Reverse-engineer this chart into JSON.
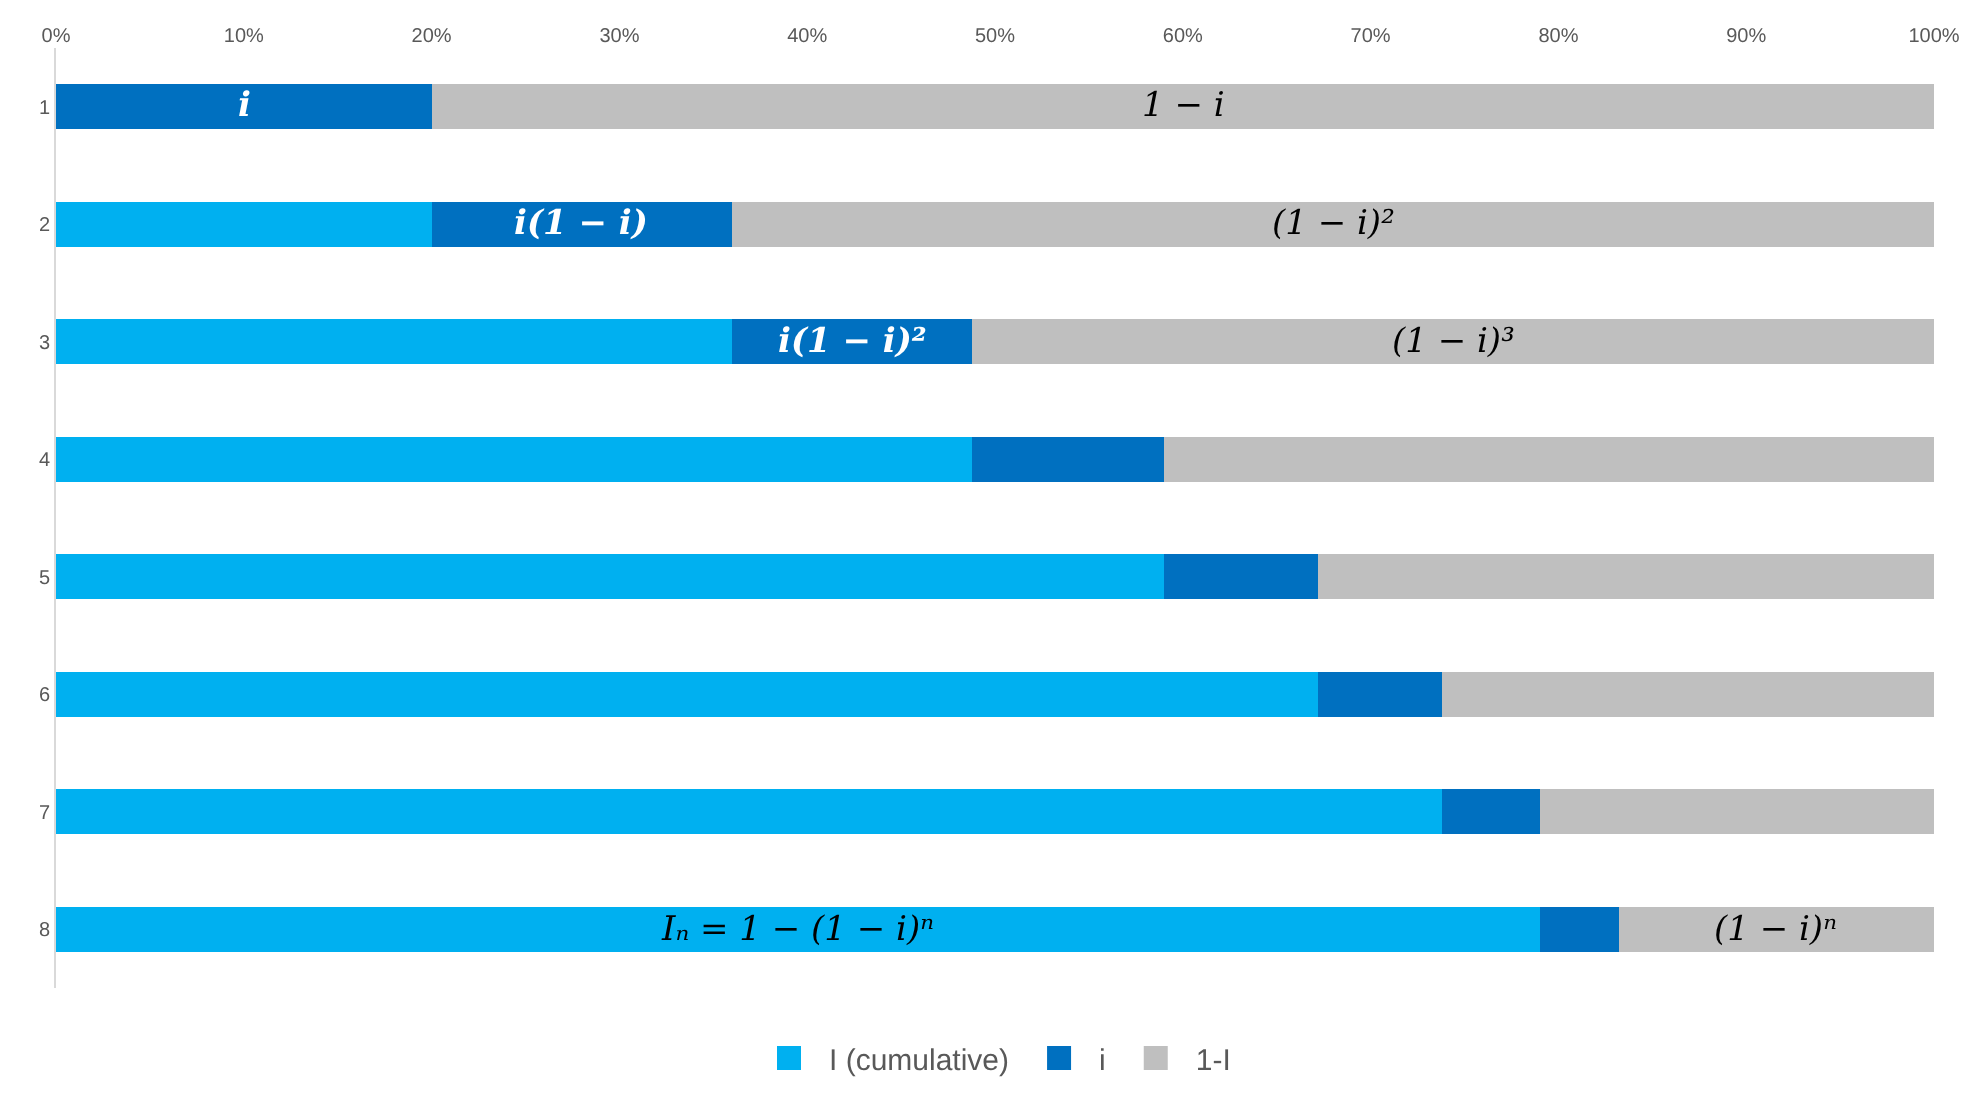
{
  "chart_data": {
    "type": "bar",
    "orientation": "horizontal",
    "stacked": true,
    "categories": [
      "1",
      "2",
      "3",
      "4",
      "5",
      "6",
      "7",
      "8"
    ],
    "series": [
      {
        "name": "I (cumulative)",
        "color": "#00b0f0",
        "values": [
          0,
          20,
          36,
          48.8,
          59,
          67.2,
          73.8,
          79
        ]
      },
      {
        "name": "i",
        "color": "#0070c0",
        "values": [
          20,
          16,
          12.8,
          10.2,
          8.2,
          6.6,
          5.2,
          4.2
        ]
      },
      {
        "name": "1-I",
        "color": "#bfbfbf",
        "values": [
          80,
          64,
          51.2,
          41,
          32.8,
          26.2,
          21,
          16.8
        ]
      }
    ],
    "xlim": [
      0,
      100
    ],
    "xticks": [
      {
        "value": 0,
        "label": "0%"
      },
      {
        "value": 10,
        "label": "10%"
      },
      {
        "value": 20,
        "label": "20%"
      },
      {
        "value": 30,
        "label": "30%"
      },
      {
        "value": 40,
        "label": "40%"
      },
      {
        "value": 50,
        "label": "50%"
      },
      {
        "value": 60,
        "label": "60%"
      },
      {
        "value": 70,
        "label": "70%"
      },
      {
        "value": 80,
        "label": "80%"
      },
      {
        "value": 90,
        "label": "90%"
      },
      {
        "value": 100,
        "label": "100%"
      }
    ],
    "grid": false,
    "legend": "bottom",
    "annotations": [
      "i",
      "1 − i",
      "i(1 − i)",
      "(1 − i)²",
      "i(1 − i)²",
      "(1 − i)³",
      "Iₙ = 1 − (1 − i)ⁿ",
      "(1 − i)ⁿ"
    ]
  }
}
